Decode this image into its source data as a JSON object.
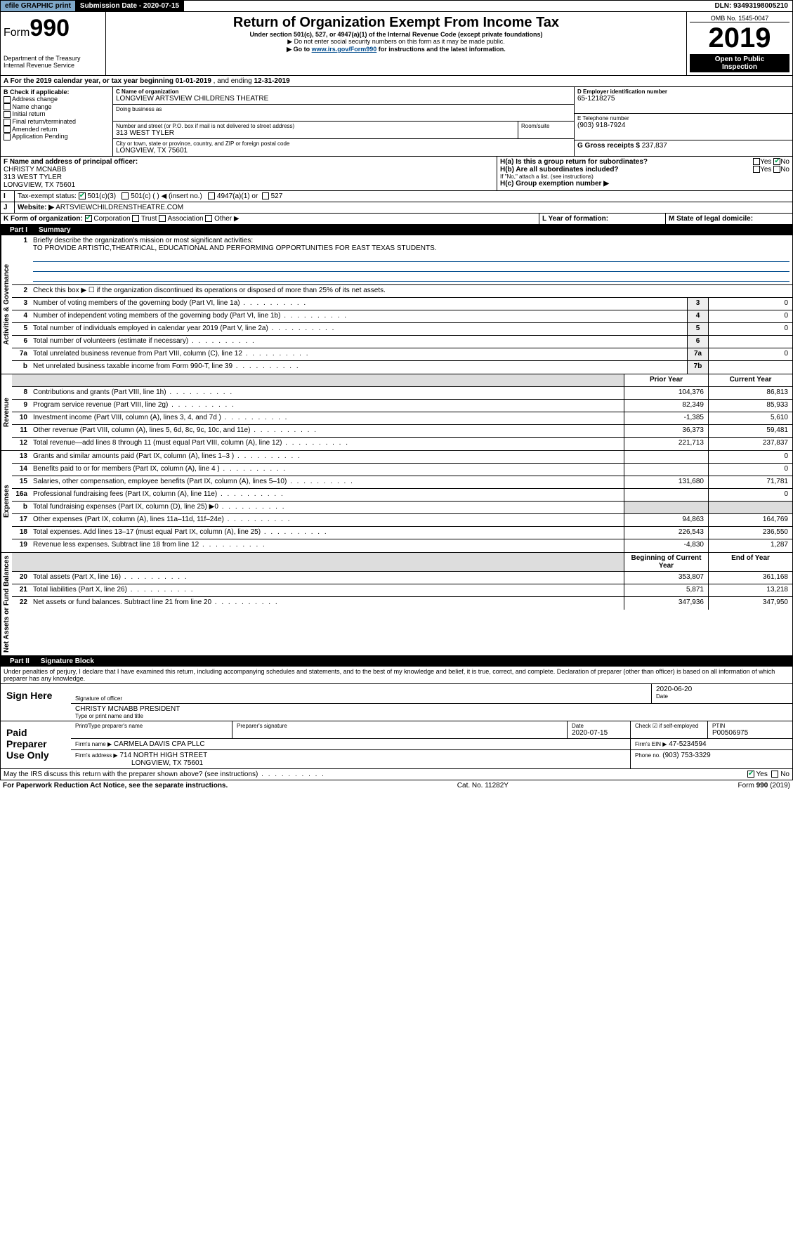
{
  "topbar": {
    "efile": "efile GRAPHIC print",
    "subdate_label": "Submission Date - ",
    "subdate": "2020-07-15",
    "dln_label": "DLN: ",
    "dln": "93493198005210"
  },
  "header": {
    "form_label": "Form",
    "form_num": "990",
    "dept": "Department of the Treasury",
    "irs": "Internal Revenue Service",
    "title": "Return of Organization Exempt From Income Tax",
    "sub1": "Under section 501(c), 527, or 4947(a)(1) of the Internal Revenue Code (except private foundations)",
    "sub2_arrow": "▶ Do not enter social security numbers on this form as it may be made public.",
    "sub3_prefix": "▶ Go to ",
    "sub3_link": "www.irs.gov/Form990",
    "sub3_suffix": " for instructions and the latest information.",
    "omb": "OMB No. 1545-0047",
    "year": "2019",
    "badge1": "Open to Public",
    "badge2": "Inspection"
  },
  "period": {
    "a_text": "A For the 2019 calendar year, or tax year beginning ",
    "begin": "01-01-2019",
    "mid": " , and ending ",
    "end": "12-31-2019"
  },
  "boxB": {
    "title": "B Check if applicable:",
    "items": [
      "Address change",
      "Name change",
      "Initial return",
      "Final return/terminated",
      "Amended return",
      "Application Pending"
    ]
  },
  "boxC": {
    "name_label": "C Name of organization",
    "name": "LONGVIEW ARTSVIEW CHILDRENS THEATRE",
    "dba_label": "Doing business as",
    "dba": "",
    "addr_label": "Number and street (or P.O. box if mail is not delivered to street address)",
    "room_label": "Room/suite",
    "addr": "313 WEST TYLER",
    "city_label": "City or town, state or province, country, and ZIP or foreign postal code",
    "city": "LONGVIEW, TX  75601"
  },
  "boxD": {
    "label": "D Employer identification number",
    "val": "65-1218275"
  },
  "boxE": {
    "label": "E Telephone number",
    "val": "(903) 918-7924"
  },
  "boxG": {
    "label": "G Gross receipts $ ",
    "val": "237,837"
  },
  "boxF": {
    "label": "F Name and address of principal officer:",
    "name": "CHRISTY MCNABB",
    "addr": "313 WEST TYLER",
    "city": "LONGVIEW, TX  75601"
  },
  "boxH": {
    "ha": "H(a)  Is this a group return for subordinates?",
    "hb": "H(b)  Are all subordinates included?",
    "hb_note": "If \"No,\" attach a list. (see instructions)",
    "hc": "H(c)  Group exemption number ▶",
    "yes": "Yes",
    "no": "No"
  },
  "boxI": {
    "label": "Tax-exempt status:",
    "c3": "501(c)(3)",
    "c": "501(c) (  ) ◀ (insert no.)",
    "a1": "4947(a)(1) or",
    "s527": "527"
  },
  "boxJ": {
    "label": "Website: ▶",
    "val": "ARTSVIEWCHILDRENSTHEATRE.COM"
  },
  "boxK": {
    "label": "K Form of organization:",
    "corp": "Corporation",
    "trust": "Trust",
    "assoc": "Association",
    "other": "Other ▶"
  },
  "boxL": {
    "label": "L Year of formation:",
    "val": ""
  },
  "boxM": {
    "label": "M State of legal domicile:",
    "val": ""
  },
  "part1": {
    "title": "Part I",
    "name": "Summary",
    "line1_label": "Briefly describe the organization's mission or most significant activities:",
    "line1_val": "TO PROVIDE ARTISTIC,THEATRICAL, EDUCATIONAL AND PERFORMING OPPORTUNITIES FOR EAST TEXAS STUDENTS.",
    "line2": "Check this box ▶ ☐  if the organization discontinued its operations or disposed of more than 25% of its net assets.",
    "vlabels": [
      "Activities & Governance",
      "Revenue",
      "Expenses",
      "Net Assets or Fund Balances"
    ],
    "col_prior": "Prior Year",
    "col_current": "Current Year",
    "col_begin": "Beginning of Current Year",
    "col_end": "End of Year",
    "rows_gov": [
      {
        "n": "3",
        "t": "Number of voting members of the governing body (Part VI, line 1a)",
        "box": "3",
        "v": "0"
      },
      {
        "n": "4",
        "t": "Number of independent voting members of the governing body (Part VI, line 1b)",
        "box": "4",
        "v": "0"
      },
      {
        "n": "5",
        "t": "Total number of individuals employed in calendar year 2019 (Part V, line 2a)",
        "box": "5",
        "v": "0"
      },
      {
        "n": "6",
        "t": "Total number of volunteers (estimate if necessary)",
        "box": "6",
        "v": ""
      },
      {
        "n": "7a",
        "t": "Total unrelated business revenue from Part VIII, column (C), line 12",
        "box": "7a",
        "v": "0"
      },
      {
        "n": "b",
        "t": "Net unrelated business taxable income from Form 990-T, line 39",
        "box": "7b",
        "v": ""
      }
    ],
    "rows_rev": [
      {
        "n": "8",
        "t": "Contributions and grants (Part VIII, line 1h)",
        "p": "104,376",
        "c": "86,813"
      },
      {
        "n": "9",
        "t": "Program service revenue (Part VIII, line 2g)",
        "p": "82,349",
        "c": "85,933"
      },
      {
        "n": "10",
        "t": "Investment income (Part VIII, column (A), lines 3, 4, and 7d )",
        "p": "-1,385",
        "c": "5,610"
      },
      {
        "n": "11",
        "t": "Other revenue (Part VIII, column (A), lines 5, 6d, 8c, 9c, 10c, and 11e)",
        "p": "36,373",
        "c": "59,481"
      },
      {
        "n": "12",
        "t": "Total revenue—add lines 8 through 11 (must equal Part VIII, column (A), line 12)",
        "p": "221,713",
        "c": "237,837"
      }
    ],
    "rows_exp": [
      {
        "n": "13",
        "t": "Grants and similar amounts paid (Part IX, column (A), lines 1–3 )",
        "p": "",
        "c": "0"
      },
      {
        "n": "14",
        "t": "Benefits paid to or for members (Part IX, column (A), line 4 )",
        "p": "",
        "c": "0"
      },
      {
        "n": "15",
        "t": "Salaries, other compensation, employee benefits (Part IX, column (A), lines 5–10)",
        "p": "131,680",
        "c": "71,781"
      },
      {
        "n": "16a",
        "t": "Professional fundraising fees (Part IX, column (A), line 11e)",
        "p": "",
        "c": "0"
      },
      {
        "n": "b",
        "t": "Total fundraising expenses (Part IX, column (D), line 25) ▶0",
        "p": "shade",
        "c": "shade"
      },
      {
        "n": "17",
        "t": "Other expenses (Part IX, column (A), lines 11a–11d, 11f–24e)",
        "p": "94,863",
        "c": "164,769"
      },
      {
        "n": "18",
        "t": "Total expenses. Add lines 13–17 (must equal Part IX, column (A), line 25)",
        "p": "226,543",
        "c": "236,550"
      },
      {
        "n": "19",
        "t": "Revenue less expenses. Subtract line 18 from line 12",
        "p": "-4,830",
        "c": "1,287"
      }
    ],
    "rows_net": [
      {
        "n": "20",
        "t": "Total assets (Part X, line 16)",
        "p": "353,807",
        "c": "361,168"
      },
      {
        "n": "21",
        "t": "Total liabilities (Part X, line 26)",
        "p": "5,871",
        "c": "13,218"
      },
      {
        "n": "22",
        "t": "Net assets or fund balances. Subtract line 21 from line 20",
        "p": "347,936",
        "c": "347,950"
      }
    ]
  },
  "part2": {
    "title": "Part II",
    "name": "Signature Block",
    "decl": "Under penalties of perjury, I declare that I have examined this return, including accompanying schedules and statements, and to the best of my knowledge and belief, it is true, correct, and complete. Declaration of preparer (other than officer) is based on all information of which preparer has any knowledge.",
    "sign_here": "Sign Here",
    "sig_officer": "Signature of officer",
    "date_label": "Date",
    "sig_date": "2020-06-20",
    "name_title": "CHRISTY MCNABB  PRESIDENT",
    "name_title_sub": "Type or print name and title",
    "paid": "Paid Preparer Use Only",
    "prep_name_label": "Print/Type preparer's name",
    "prep_sig_label": "Preparer's signature",
    "prep_date_label": "Date",
    "prep_date": "2020-07-15",
    "check_label": "Check ☑ if self-employed",
    "ptin_label": "PTIN",
    "ptin": "P00506975",
    "firm_name_label": "Firm's name   ▶",
    "firm_name": "CARMELA DAVIS CPA PLLC",
    "firm_ein_label": "Firm's EIN ▶",
    "firm_ein": "47-5234594",
    "firm_addr_label": "Firm's address ▶",
    "firm_addr1": "714 NORTH HIGH STREET",
    "firm_addr2": "LONGVIEW, TX  75601",
    "firm_phone_label": "Phone no.",
    "firm_phone": "(903) 753-3329",
    "discuss": "May the IRS discuss this return with the preparer shown above? (see instructions)",
    "yes": "Yes",
    "no": "No"
  },
  "footer": {
    "pra": "For Paperwork Reduction Act Notice, see the separate instructions.",
    "cat": "Cat. No. 11282Y",
    "form": "Form 990 (2019)"
  }
}
